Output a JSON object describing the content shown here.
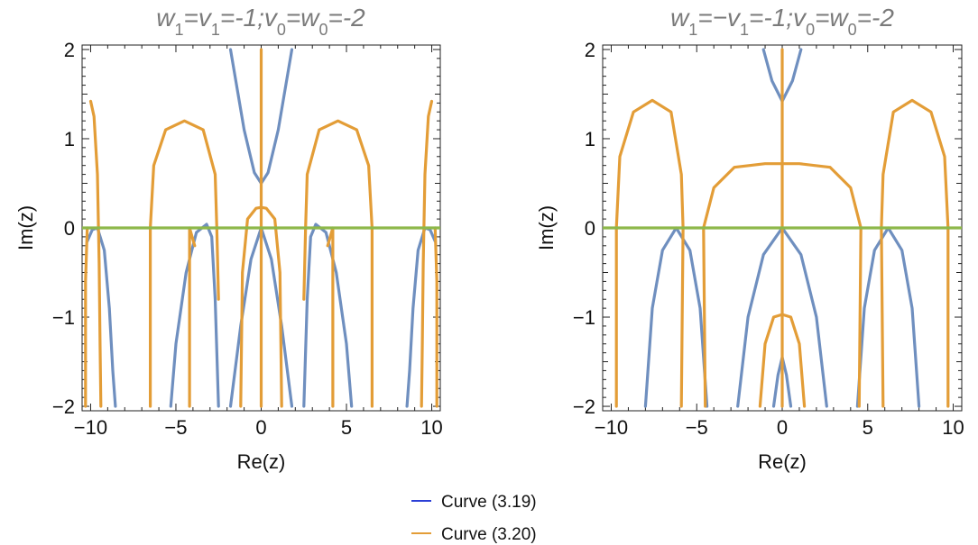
{
  "chart_data": [
    {
      "type": "line",
      "title_parts": [
        "w",
        "1",
        "=v",
        "1",
        "=-1;v",
        "0",
        "=w",
        "0",
        "=-2"
      ],
      "xlabel": "Re(z)",
      "ylabel": "Im(z)",
      "xlim": [
        -10.5,
        10.5
      ],
      "ylim": [
        -2.05,
        2.05
      ],
      "x_ticks": [
        -10,
        -5,
        0,
        5,
        10
      ],
      "y_ticks": [
        -2,
        -1,
        0,
        1,
        2
      ],
      "x_tick_labels": [
        "−10",
        "−5",
        "0",
        "5",
        "10"
      ],
      "y_tick_labels": [
        "−2",
        "−1",
        "0",
        "1",
        "2"
      ],
      "series": [
        {
          "name": "Curve (3.19)",
          "color": "#6f8fbf",
          "paths": [
            [
              [
                -10.2,
                -0.15
              ],
              [
                -9.9,
                -0.02
              ],
              [
                -9.6,
                0.0
              ],
              [
                -9.2,
                -0.25
              ],
              [
                -8.9,
                -0.9
              ],
              [
                -8.7,
                -1.6
              ],
              [
                -8.55,
                -2.0
              ]
            ],
            [
              [
                -5.3,
                -2.0
              ],
              [
                -5.0,
                -1.3
              ],
              [
                -4.4,
                -0.5
              ],
              [
                -3.8,
                -0.05
              ],
              [
                -3.2,
                0.04
              ],
              [
                -2.9,
                -0.1
              ],
              [
                -2.7,
                -0.8
              ],
              [
                -2.5,
                -2.0
              ]
            ],
            [
              [
                -1.8,
                -2.0
              ],
              [
                -1.2,
                -1.1
              ],
              [
                -0.6,
                -0.35
              ],
              [
                0.0,
                0.0
              ],
              [
                0.6,
                -0.35
              ],
              [
                1.2,
                -1.1
              ],
              [
                1.8,
                -2.0
              ]
            ],
            [
              [
                2.5,
                -2.0
              ],
              [
                2.7,
                -0.8
              ],
              [
                2.9,
                -0.1
              ],
              [
                3.2,
                0.04
              ],
              [
                3.8,
                -0.05
              ],
              [
                4.4,
                -0.5
              ],
              [
                5.0,
                -1.3
              ],
              [
                5.3,
                -2.0
              ]
            ],
            [
              [
                8.55,
                -2.0
              ],
              [
                8.7,
                -1.6
              ],
              [
                8.9,
                -0.9
              ],
              [
                9.2,
                -0.25
              ],
              [
                9.6,
                0.0
              ],
              [
                9.9,
                -0.02
              ],
              [
                10.2,
                -0.15
              ]
            ],
            [
              [
                -1.8,
                2.0
              ],
              [
                -1.0,
                1.1
              ],
              [
                -0.4,
                0.62
              ],
              [
                0.0,
                0.5
              ],
              [
                0.4,
                0.62
              ],
              [
                1.0,
                1.1
              ],
              [
                1.8,
                2.0
              ]
            ]
          ]
        },
        {
          "name": "Curve (3.20)",
          "color": "#e39d37",
          "paths": [
            [
              [
                -10.0,
                1.42
              ],
              [
                -9.8,
                1.25
              ],
              [
                -9.6,
                0.6
              ],
              [
                -9.5,
                -0.4
              ],
              [
                -9.45,
                -1.3
              ],
              [
                -9.4,
                -2.0
              ]
            ],
            [
              [
                -10.3,
                -2.0
              ],
              [
                -10.3,
                -0.6
              ],
              [
                -10.2,
                0.0
              ]
            ],
            [
              [
                -6.5,
                -2.0
              ],
              [
                -6.5,
                0.0
              ],
              [
                -6.3,
                0.7
              ],
              [
                -5.6,
                1.1
              ],
              [
                -4.5,
                1.2
              ],
              [
                -3.4,
                1.1
              ],
              [
                -2.7,
                0.6
              ],
              [
                -2.6,
                0.0
              ],
              [
                -2.5,
                -0.8
              ]
            ],
            [
              [
                -4.2,
                -2.0
              ],
              [
                -4.2,
                0.0
              ],
              [
                -3.9,
                -0.2
              ]
            ],
            [
              [
                -1.2,
                -2.0
              ],
              [
                -1.1,
                -0.5
              ],
              [
                -0.8,
                0.1
              ],
              [
                -0.3,
                0.22
              ],
              [
                0.0,
                0.23
              ],
              [
                0.3,
                0.22
              ],
              [
                0.8,
                0.1
              ],
              [
                1.1,
                -0.5
              ],
              [
                1.2,
                -2.0
              ]
            ],
            [
              [
                0.0,
                -2.0
              ],
              [
                0.0,
                2.0
              ]
            ],
            [
              [
                2.5,
                -0.8
              ],
              [
                2.6,
                0.0
              ],
              [
                2.7,
                0.6
              ],
              [
                3.4,
                1.1
              ],
              [
                4.5,
                1.2
              ],
              [
                5.6,
                1.1
              ],
              [
                6.3,
                0.7
              ],
              [
                6.5,
                0.0
              ],
              [
                6.5,
                -2.0
              ]
            ],
            [
              [
                3.9,
                -0.2
              ],
              [
                4.2,
                0.0
              ],
              [
                4.2,
                -2.0
              ]
            ],
            [
              [
                10.0,
                1.42
              ],
              [
                9.8,
                1.25
              ],
              [
                9.6,
                0.6
              ],
              [
                9.5,
                -0.4
              ],
              [
                9.45,
                -1.3
              ],
              [
                9.4,
                -2.0
              ]
            ],
            [
              [
                10.3,
                -2.0
              ],
              [
                10.3,
                -0.6
              ],
              [
                10.2,
                0.0
              ]
            ]
          ]
        },
        {
          "name": "",
          "color": "#8db84a",
          "paths": [
            [
              [
                -10.5,
                0.0
              ],
              [
                10.5,
                0.0
              ]
            ]
          ]
        }
      ]
    },
    {
      "type": "line",
      "title_parts": [
        "w",
        "1",
        "=−v",
        "1",
        "=-1;v",
        "0",
        "=w",
        "0",
        "=-2"
      ],
      "xlabel": "Re(z)",
      "ylabel": "Im(z)",
      "xlim": [
        -10.5,
        10.5
      ],
      "ylim": [
        -2.05,
        2.05
      ],
      "x_ticks": [
        -10,
        -5,
        0,
        5,
        10
      ],
      "y_ticks": [
        -2,
        -1,
        0,
        1,
        2
      ],
      "x_tick_labels": [
        "−10",
        "−5",
        "0",
        "5",
        "10"
      ],
      "y_tick_labels": [
        "−2",
        "−1",
        "0",
        "1",
        "2"
      ],
      "series": [
        {
          "name": "Curve (3.19)",
          "color": "#6f8fbf",
          "paths": [
            [
              [
                -8.0,
                -2.0
              ],
              [
                -7.6,
                -0.9
              ],
              [
                -7.0,
                -0.25
              ],
              [
                -6.2,
                0.0
              ],
              [
                -5.4,
                -0.25
              ],
              [
                -4.8,
                -0.9
              ],
              [
                -4.4,
                -2.0
              ]
            ],
            [
              [
                -2.6,
                -2.0
              ],
              [
                -2.0,
                -1.0
              ],
              [
                -1.1,
                -0.3
              ],
              [
                0.0,
                0.0
              ],
              [
                1.1,
                -0.3
              ],
              [
                2.0,
                -1.0
              ],
              [
                2.6,
                -2.0
              ]
            ],
            [
              [
                4.4,
                -2.0
              ],
              [
                4.8,
                -0.9
              ],
              [
                5.4,
                -0.25
              ],
              [
                6.2,
                0.0
              ],
              [
                7.0,
                -0.25
              ],
              [
                7.6,
                -0.9
              ],
              [
                8.0,
                -2.0
              ]
            ],
            [
              [
                -0.5,
                -2.0
              ],
              [
                -0.25,
                -1.65
              ],
              [
                0.0,
                -1.45
              ],
              [
                0.25,
                -1.65
              ],
              [
                0.5,
                -2.0
              ]
            ],
            [
              [
                -1.1,
                2.0
              ],
              [
                -0.6,
                1.65
              ],
              [
                0.0,
                1.42
              ],
              [
                0.6,
                1.65
              ],
              [
                1.1,
                2.0
              ]
            ]
          ]
        },
        {
          "name": "Curve (3.20)",
          "color": "#e39d37",
          "paths": [
            [
              [
                -9.7,
                -2.0
              ],
              [
                -9.7,
                0.0
              ],
              [
                -9.5,
                0.8
              ],
              [
                -8.7,
                1.3
              ],
              [
                -7.6,
                1.43
              ],
              [
                -6.5,
                1.3
              ],
              [
                -5.9,
                0.6
              ],
              [
                -5.8,
                0.0
              ],
              [
                -5.9,
                -2.0
              ]
            ],
            [
              [
                -4.5,
                -2.0
              ],
              [
                -4.6,
                0.0
              ],
              [
                -4.0,
                0.45
              ],
              [
                -2.8,
                0.68
              ],
              [
                -1.0,
                0.72
              ],
              [
                1.0,
                0.72
              ],
              [
                2.8,
                0.68
              ],
              [
                4.0,
                0.45
              ],
              [
                4.6,
                0.0
              ],
              [
                4.5,
                -2.0
              ]
            ],
            [
              [
                0.0,
                -2.0
              ],
              [
                0.0,
                2.0
              ]
            ],
            [
              [
                -1.3,
                -2.0
              ],
              [
                -1.0,
                -1.3
              ],
              [
                -0.5,
                -1.0
              ],
              [
                0.0,
                -0.97
              ],
              [
                0.5,
                -1.0
              ],
              [
                1.0,
                -1.3
              ],
              [
                1.3,
                -2.0
              ]
            ],
            [
              [
                5.9,
                -2.0
              ],
              [
                5.8,
                0.0
              ],
              [
                5.9,
                0.6
              ],
              [
                6.5,
                1.3
              ],
              [
                7.6,
                1.43
              ],
              [
                8.7,
                1.3
              ],
              [
                9.5,
                0.8
              ],
              [
                9.7,
                0.0
              ],
              [
                9.7,
                -2.0
              ]
            ]
          ]
        },
        {
          "name": "",
          "color": "#8db84a",
          "paths": [
            [
              [
                -10.5,
                0.0
              ],
              [
                10.5,
                0.0
              ]
            ]
          ]
        }
      ]
    }
  ],
  "legend": {
    "items": [
      {
        "label": "Curve (3.19)",
        "color": "#2b3fd6"
      },
      {
        "label": "Curve (3.20)",
        "color": "#e39d37"
      }
    ]
  }
}
